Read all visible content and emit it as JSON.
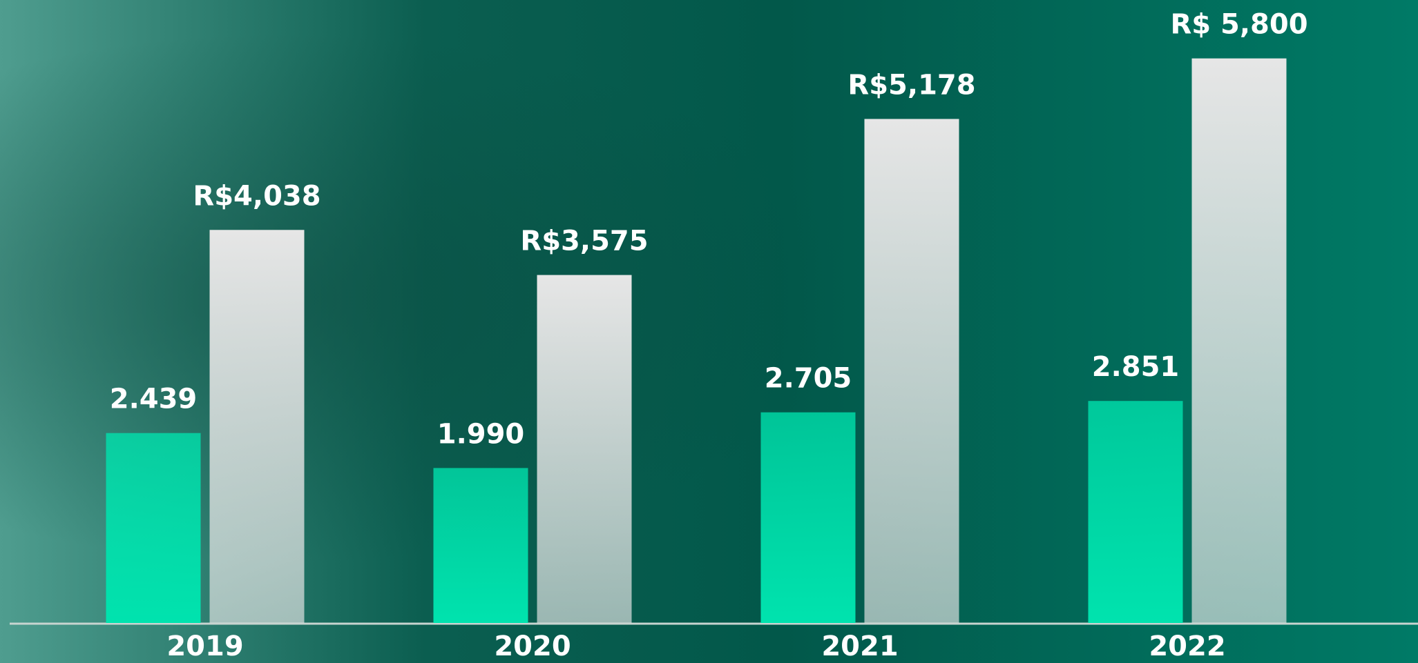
{
  "chart_data": {
    "type": "bar",
    "categories": [
      "2019",
      "2020",
      "2021",
      "2022"
    ],
    "series": [
      {
        "name": null,
        "color": "#00e3ae",
        "axis": "y2",
        "values": [
          2.439,
          1.99,
          2.705,
          2.851
        ],
        "value_labels": [
          "2.439",
          "1.990",
          "2.705",
          "2.851"
        ]
      },
      {
        "name": null,
        "color": "#e6e6e6",
        "values": [
          4038,
          3575,
          5178,
          5800
        ],
        "value_labels": [
          "R$4,038",
          "R$3,575",
          "R$5,178",
          "R$ 5,800"
        ]
      }
    ],
    "ylim": [
      0,
      6400
    ],
    "y2lim": [
      0,
      8
    ]
  }
}
